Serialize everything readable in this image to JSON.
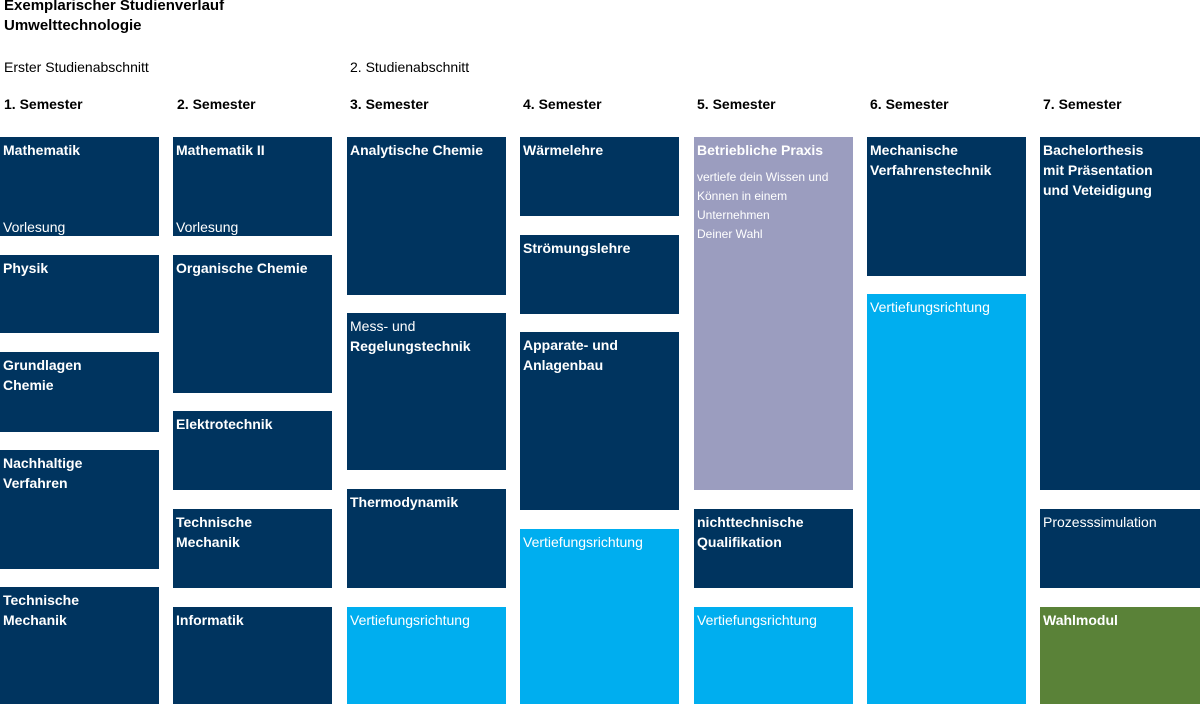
{
  "title": {
    "line1": "Exemplarischer Studienverlauf",
    "line2": "Umwelttechnologie"
  },
  "sections": {
    "first": "Erster Studienabschnitt",
    "second": "2. Studienabschnitt"
  },
  "semesters": [
    "1. Semester",
    "2. Semester",
    "3. Semester",
    "4. Semester",
    "5. Semester",
    "6. Semester",
    "7. Semester"
  ],
  "colors": {
    "pflichtmodul": "#00345f",
    "vertiefungsrichtung": "#00aeef",
    "praxis": "#9b9dbf",
    "wahlmodul": "#5a8238"
  },
  "modules": {
    "s1": [
      {
        "name": "Mathematik",
        "sub": "Vorlesung"
      },
      {
        "name": "Physik"
      },
      {
        "name": "Grundlagen\nChemie"
      },
      {
        "name": "Nachhaltige\nVerfahren"
      },
      {
        "name": "Technische\nMechanik"
      }
    ],
    "s2": [
      {
        "name": "Mathematik II",
        "sub": "Vorlesung"
      },
      {
        "name": "Organische Chemie"
      },
      {
        "name": "Elektrotechnik"
      },
      {
        "name": "Technische\nMechanik"
      },
      {
        "name": "Informatik"
      }
    ],
    "s3": [
      {
        "name": "Analytische Chemie"
      },
      {
        "pre": "Mess- und",
        "name": "Regelungstechnik"
      },
      {
        "name": "Thermodynamik"
      },
      {
        "name": "Vertiefungsrichtung"
      }
    ],
    "s4": [
      {
        "name": "Wärmelehre"
      },
      {
        "name": "Strömungslehre"
      },
      {
        "name": "Apparate- und\nAnlagenbau"
      },
      {
        "name": "Vertiefungsrichtung"
      }
    ],
    "s5": [
      {
        "name": "Betriebliche Praxis",
        "desc": "vertiefe dein Wissen und\nKönnen in einem\nUnternehmen\nDeiner Wahl"
      },
      {
        "name": "nichttechnische\nQualifikation"
      },
      {
        "name": "Vertiefungsrichtung"
      }
    ],
    "s6": [
      {
        "name": "Mechanische\nVerfahrenstechnik"
      },
      {
        "name": "Vertiefungsrichtung"
      }
    ],
    "s7": [
      {
        "name": "Bachelorthesis\nmit Präsentation\nund Veteidigung"
      },
      {
        "name": "Prozesssimulation"
      },
      {
        "name": "Wahlmodul"
      }
    ]
  }
}
